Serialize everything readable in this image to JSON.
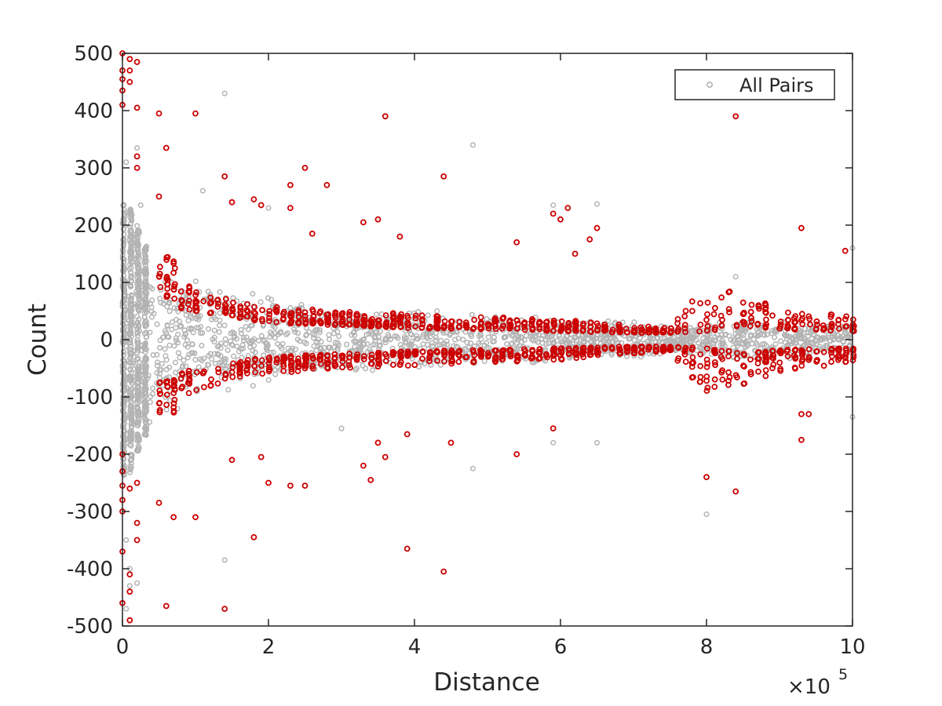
{
  "chart_data": {
    "type": "scatter",
    "title": "",
    "xlabel": "Distance",
    "ylabel": "Count",
    "xlim": [
      0,
      10
    ],
    "ylim": [
      -500,
      500
    ],
    "x_multiplier": {
      "base": "×10",
      "exponent": "5"
    },
    "x_ticks": [
      "0",
      "2",
      "4",
      "6",
      "8",
      "10"
    ],
    "y_ticks": [
      "500",
      "400",
      "300",
      "200",
      "100",
      "0",
      "-100",
      "-200",
      "-300",
      "-400",
      "-500"
    ],
    "grid": false,
    "legend": {
      "position": "top-right",
      "entries": [
        "All Pairs"
      ]
    },
    "series": [
      {
        "name": "All Pairs",
        "color": "#b3b3b3",
        "marker": "circle-open",
        "envelope": [
          [
            0.0,
            240
          ],
          [
            0.1,
            235
          ],
          [
            0.2,
            200
          ],
          [
            0.3,
            170
          ],
          [
            0.5,
            155
          ],
          [
            0.7,
            130
          ],
          [
            1.0,
            110
          ],
          [
            1.5,
            95
          ],
          [
            2.0,
            80
          ],
          [
            3.0,
            60
          ],
          [
            4.0,
            55
          ],
          [
            5.0,
            45
          ],
          [
            6.0,
            40
          ],
          [
            7.0,
            35
          ],
          [
            7.5,
            25
          ],
          [
            8.0,
            30
          ],
          [
            8.4,
            40
          ],
          [
            9.0,
            35
          ],
          [
            10.0,
            30
          ]
        ],
        "outliers": [
          [
            0.05,
            -470
          ],
          [
            0.05,
            -350
          ],
          [
            0.05,
            310
          ],
          [
            0.1,
            -430
          ],
          [
            0.1,
            -400
          ],
          [
            0.2,
            335
          ],
          [
            0.2,
            -425
          ],
          [
            0.25,
            235
          ],
          [
            1.1,
            260
          ],
          [
            1.4,
            430
          ],
          [
            1.4,
            -385
          ],
          [
            2.0,
            230
          ],
          [
            3.0,
            -155
          ],
          [
            4.8,
            340
          ],
          [
            4.8,
            -225
          ],
          [
            5.9,
            235
          ],
          [
            6.5,
            237
          ],
          [
            5.9,
            -180
          ],
          [
            6.5,
            -180
          ],
          [
            8.0,
            -305
          ],
          [
            8.4,
            110
          ],
          [
            10.0,
            160
          ],
          [
            10.0,
            -135
          ]
        ]
      },
      {
        "name": "",
        "color": "#cc0000",
        "marker": "circle-open",
        "bands": [
          [
            0.5,
            75,
            140
          ],
          [
            0.7,
            70,
            150
          ],
          [
            0.8,
            55,
            100
          ],
          [
            1.0,
            50,
            90
          ],
          [
            1.5,
            40,
            70
          ],
          [
            2.0,
            30,
            60
          ],
          [
            3.0,
            25,
            50
          ],
          [
            4.0,
            20,
            45
          ],
          [
            5.0,
            18,
            40
          ],
          [
            6.0,
            15,
            35
          ],
          [
            7.0,
            12,
            25
          ],
          [
            7.5,
            12,
            20
          ],
          [
            8.0,
            15,
            100
          ],
          [
            8.3,
            20,
            90
          ],
          [
            8.5,
            25,
            80
          ],
          [
            9.0,
            18,
            55
          ],
          [
            10.0,
            15,
            40
          ]
        ],
        "outliers": [
          [
            0.0,
            500
          ],
          [
            0.0,
            470
          ],
          [
            0.0,
            455
          ],
          [
            0.0,
            435
          ],
          [
            0.0,
            410
          ],
          [
            0.0,
            -460
          ],
          [
            0.0,
            -370
          ],
          [
            0.0,
            -300
          ],
          [
            0.0,
            -280
          ],
          [
            0.0,
            -255
          ],
          [
            0.0,
            -230
          ],
          [
            0.0,
            -200
          ],
          [
            0.1,
            490
          ],
          [
            0.1,
            470
          ],
          [
            0.1,
            450
          ],
          [
            0.1,
            -490
          ],
          [
            0.1,
            -440
          ],
          [
            0.1,
            -410
          ],
          [
            0.1,
            -260
          ],
          [
            0.2,
            485
          ],
          [
            0.2,
            405
          ],
          [
            0.2,
            320
          ],
          [
            0.2,
            300
          ],
          [
            0.2,
            -350
          ],
          [
            0.2,
            -320
          ],
          [
            0.2,
            -250
          ],
          [
            0.5,
            395
          ],
          [
            0.5,
            250
          ],
          [
            0.5,
            -285
          ],
          [
            0.6,
            335
          ],
          [
            0.6,
            -465
          ],
          [
            0.7,
            -310
          ],
          [
            1.0,
            395
          ],
          [
            1.0,
            -310
          ],
          [
            1.4,
            285
          ],
          [
            1.4,
            -470
          ],
          [
            1.5,
            240
          ],
          [
            1.5,
            -210
          ],
          [
            1.8,
            245
          ],
          [
            1.8,
            -345
          ],
          [
            1.9,
            235
          ],
          [
            1.9,
            -205
          ],
          [
            2.0,
            -250
          ],
          [
            2.3,
            270
          ],
          [
            2.3,
            230
          ],
          [
            2.3,
            -255
          ],
          [
            2.5,
            300
          ],
          [
            2.5,
            -255
          ],
          [
            2.6,
            185
          ],
          [
            2.8,
            270
          ],
          [
            3.3,
            205
          ],
          [
            3.3,
            -220
          ],
          [
            3.4,
            -245
          ],
          [
            3.5,
            210
          ],
          [
            3.5,
            -180
          ],
          [
            3.6,
            390
          ],
          [
            3.6,
            -205
          ],
          [
            3.8,
            180
          ],
          [
            3.9,
            -365
          ],
          [
            3.9,
            -165
          ],
          [
            4.4,
            285
          ],
          [
            4.4,
            -405
          ],
          [
            4.5,
            -180
          ],
          [
            5.4,
            170
          ],
          [
            5.4,
            -200
          ],
          [
            5.9,
            220
          ],
          [
            5.9,
            -155
          ],
          [
            6.0,
            210
          ],
          [
            6.1,
            230
          ],
          [
            6.2,
            150
          ],
          [
            6.4,
            175
          ],
          [
            6.5,
            195
          ],
          [
            8.0,
            -240
          ],
          [
            8.4,
            390
          ],
          [
            8.4,
            -265
          ],
          [
            9.3,
            195
          ],
          [
            9.3,
            -175
          ],
          [
            9.3,
            -130
          ],
          [
            9.4,
            -130
          ],
          [
            9.9,
            155
          ]
        ]
      }
    ]
  }
}
